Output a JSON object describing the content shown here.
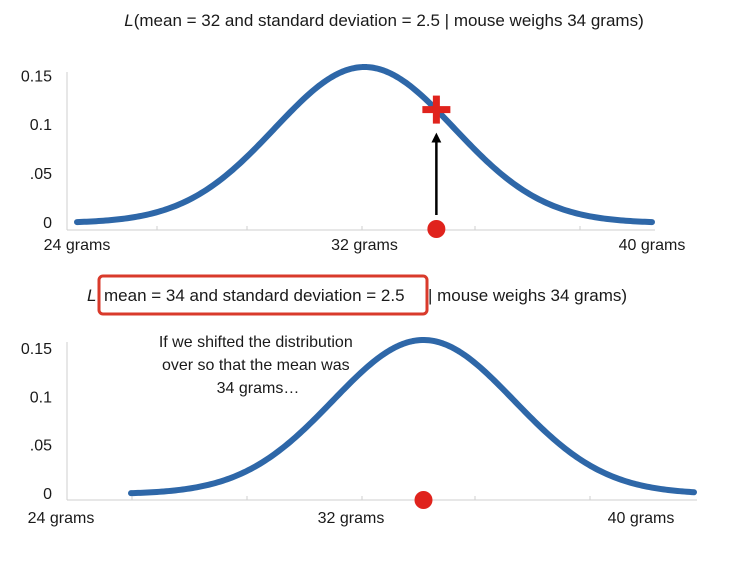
{
  "chart_data": [
    {
      "type": "line",
      "title_prefix": "L",
      "title_rest": "(mean = 32 and standard deviation = 2.5 | mouse weighs 34 grams)",
      "distribution": {
        "mean": 32,
        "sd": 2.5
      },
      "xlim": [
        24,
        40
      ],
      "ylim": [
        0,
        0.16
      ],
      "x_ticks": [
        {
          "value": 24,
          "label": "24 grams"
        },
        {
          "value": 32,
          "label": "32 grams"
        },
        {
          "value": 40,
          "label": "40 grams"
        }
      ],
      "y_ticks": [
        {
          "value": 0,
          "label": "0"
        },
        {
          "value": 0.05,
          "label": ".05"
        },
        {
          "value": 0.1,
          "label": "0.1"
        },
        {
          "value": 0.15,
          "label": "0.15"
        }
      ],
      "observation": {
        "x": 34
      },
      "likelihood_marker": {
        "x": 34,
        "y": 0.116
      },
      "curve_color": "#2e67a8",
      "marker_color": "#e0231d",
      "grid": false
    },
    {
      "type": "line",
      "title_prefix": "L",
      "title_highlight": "mean = 34 and standard deviation = 2.5",
      "title_rest": "| mouse weighs 34 grams)",
      "distribution": {
        "mean": 34,
        "sd": 2.5
      },
      "xlim": [
        24,
        40
      ],
      "ylim": [
        0,
        0.16
      ],
      "x_ticks": [
        {
          "value": 24,
          "label": "24 grams"
        },
        {
          "value": 32,
          "label": "32 grams"
        },
        {
          "value": 40,
          "label": "40 grams"
        }
      ],
      "y_ticks": [
        {
          "value": 0,
          "label": "0"
        },
        {
          "value": 0.05,
          "label": ".05"
        },
        {
          "value": 0.1,
          "label": "0.1"
        },
        {
          "value": 0.15,
          "label": "0.15"
        }
      ],
      "observation": {
        "x": 34
      },
      "annotation": [
        "If we shifted the distribution",
        "over so that the mean was",
        "34 grams…"
      ],
      "curve_color": "#2e67a8",
      "marker_color": "#e0231d",
      "highlight_box_color": "#d93a2b",
      "grid": false
    }
  ]
}
